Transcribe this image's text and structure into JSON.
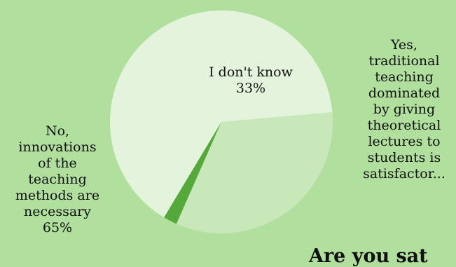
{
  "chart_data": {
    "type": "pie",
    "title": "Are you sat",
    "slices": [
      {
        "label_lines": [
          "I don't know",
          "33%"
        ],
        "value": 33,
        "color": "#c8e8ba"
      },
      {
        "label_lines": [
          "Yes,",
          "traditional",
          "teaching",
          "dominated",
          "by giving",
          "theoretical",
          "lectures to",
          "students is",
          "satisfactor..."
        ],
        "value": 2,
        "color": "#55a93b"
      },
      {
        "label_lines": [
          "No,",
          "innovations",
          "of the",
          "teaching",
          "methods are",
          "necessary",
          "65%"
        ],
        "value": 65,
        "color": "#e3f3dc"
      }
    ]
  }
}
